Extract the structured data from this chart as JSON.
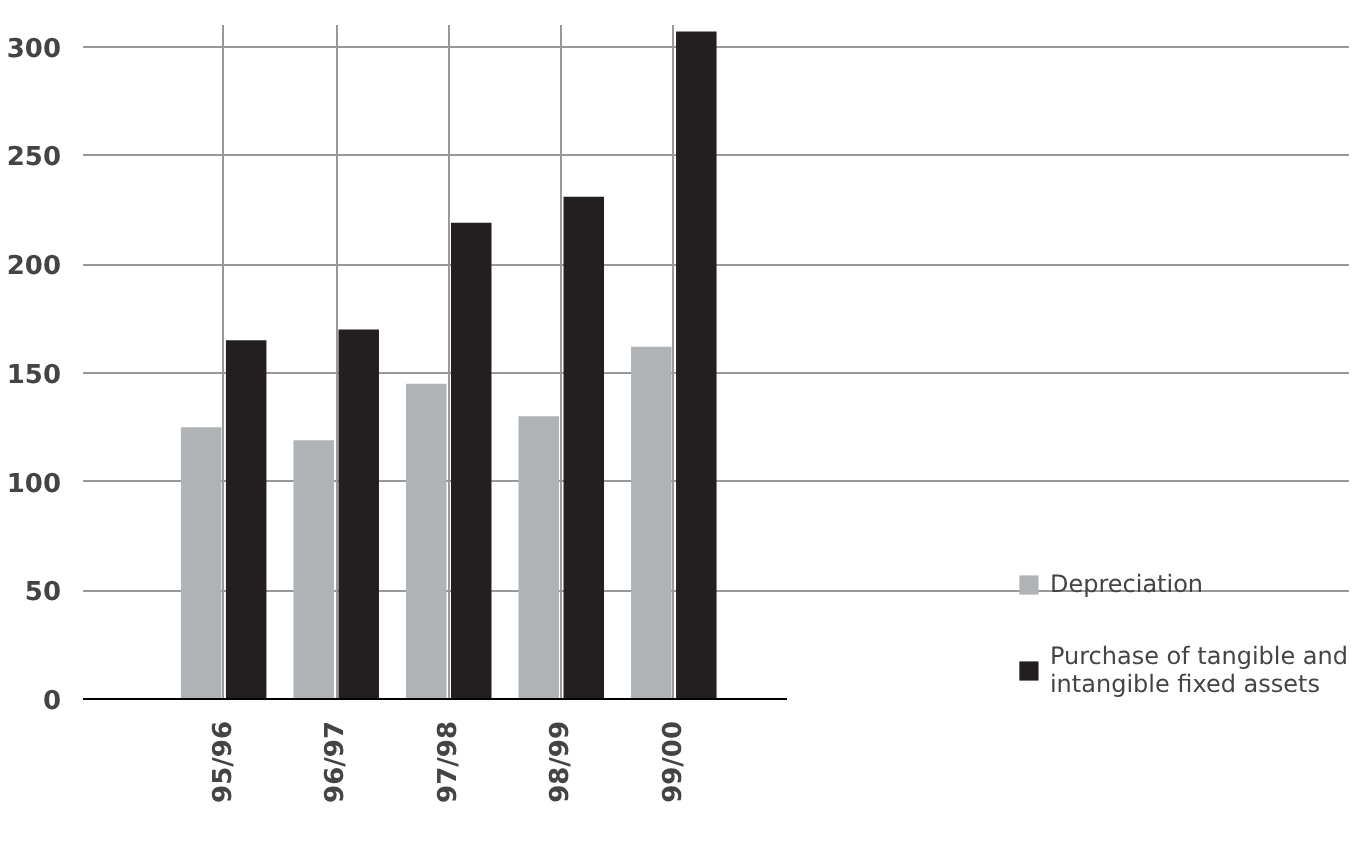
{
  "chart_data": {
    "type": "bar",
    "categories": [
      "95/96",
      "96/97",
      "97/98",
      "98/99",
      "99/00"
    ],
    "series": [
      {
        "name": "Depreciation",
        "color": "#b0b3b5",
        "values": [
          125,
          119,
          145,
          130,
          162
        ]
      },
      {
        "name": "Purchase of tangible and intangible fixed assets",
        "color": "#231f20",
        "values": [
          165,
          170,
          219,
          231,
          307
        ]
      }
    ],
    "ylim": [
      0,
      310
    ],
    "yticks": [
      0,
      50,
      100,
      150,
      200,
      250,
      300
    ],
    "grid": true,
    "legend": "right"
  }
}
